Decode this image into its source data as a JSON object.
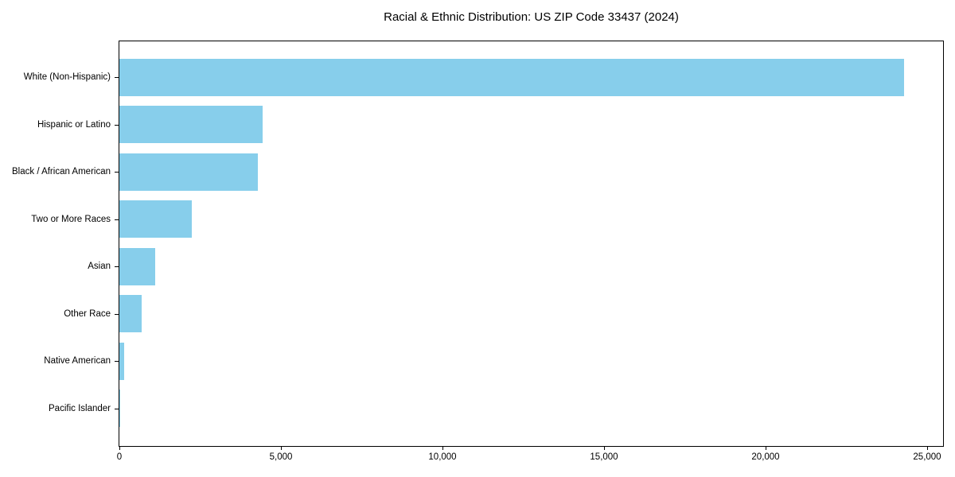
{
  "chart_data": {
    "type": "bar",
    "orientation": "horizontal",
    "title": "Racial & Ethnic Distribution: US ZIP Code 33437 (2024)",
    "categories": [
      "White (Non-Hispanic)",
      "Hispanic or Latino",
      "Black / African American",
      "Two or More Races",
      "Asian",
      "Other Race",
      "Native American",
      "Pacific Islander"
    ],
    "values": [
      24300,
      4440,
      4290,
      2250,
      1110,
      680,
      160,
      15
    ],
    "xlabel": "",
    "ylabel": "",
    "xlim": [
      0,
      25500
    ],
    "xticks": [
      0,
      5000,
      10000,
      15000,
      20000,
      25000
    ],
    "xtick_labels": [
      "0",
      "5,000",
      "10,000",
      "15,000",
      "20,000",
      "25,000"
    ],
    "bar_color": "#87CEEB",
    "text_color": "#000000",
    "grid": false,
    "legend": null
  }
}
